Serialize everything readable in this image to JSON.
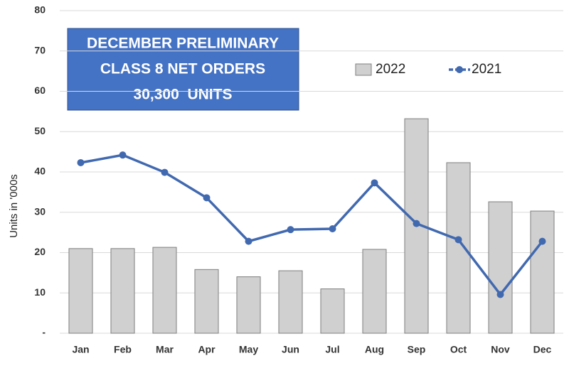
{
  "chart_data": {
    "type": "combo",
    "title": [
      "DECEMBER PRELIMINARY",
      "CLASS 8 NET ORDERS",
      "30,300  UNITS"
    ],
    "y_label": "Units in '000s",
    "categories": [
      "Jan",
      "Feb",
      "Mar",
      "Apr",
      "May",
      "Jun",
      "Jul",
      "Aug",
      "Sep",
      "Oct",
      "Nov",
      "Dec"
    ],
    "series": [
      {
        "name": "2022",
        "type": "bar",
        "color": "#d0d0d0",
        "values": [
          21,
          21,
          21.3,
          15.8,
          14,
          15.5,
          11,
          20.8,
          53.2,
          42.3,
          32.6,
          30.3
        ]
      },
      {
        "name": "2021",
        "type": "line",
        "color": "#4169b0",
        "values": [
          42.3,
          44.2,
          39.9,
          33.6,
          22.8,
          25.7,
          25.9,
          37.3,
          27.2,
          23.2,
          9.6,
          22.8
        ]
      }
    ],
    "ylim": [
      0,
      80
    ],
    "yticks": [
      {
        "value": 0,
        "label": "-"
      },
      10,
      20,
      30,
      40,
      50,
      60,
      70,
      80
    ],
    "grid": true
  }
}
